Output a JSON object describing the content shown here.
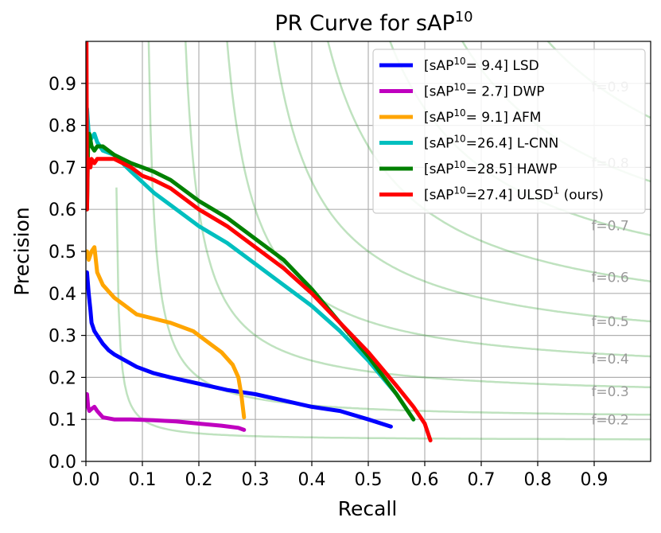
{
  "chart_data": {
    "type": "line",
    "title": "PR Curve for sAP",
    "title_sup": "10",
    "xlabel": "Recall",
    "ylabel": "Precision",
    "xlim": [
      0,
      1.0
    ],
    "ylim": [
      0,
      1.0
    ],
    "xticks": [
      "0.0",
      "0.1",
      "0.2",
      "0.3",
      "0.4",
      "0.5",
      "0.6",
      "0.7",
      "0.8",
      "0.9"
    ],
    "yticks": [
      "0.0",
      "0.1",
      "0.2",
      "0.3",
      "0.4",
      "0.5",
      "0.6",
      "0.7",
      "0.8",
      "0.9"
    ],
    "grid": true,
    "legend_position": "top-right",
    "iso_f_lines": [
      0.1,
      0.2,
      0.3,
      0.4,
      0.5,
      0.6,
      0.7,
      0.8,
      0.9
    ],
    "iso_f_labels": [
      {
        "f": 0.2,
        "text": "f=0.2"
      },
      {
        "f": 0.3,
        "text": "f=0.3"
      },
      {
        "f": 0.4,
        "text": "f=0.4"
      },
      {
        "f": 0.5,
        "text": "f=0.5"
      },
      {
        "f": 0.6,
        "text": "f=0.6"
      },
      {
        "f": 0.7,
        "text": "f=0.7"
      },
      {
        "f": 0.8,
        "text": "f=0.8"
      },
      {
        "f": 0.9,
        "text": "f=0.9"
      }
    ],
    "series": [
      {
        "name": "LSD",
        "legend": {
          "prefix": "[sAP",
          "sup": "10",
          "mid": "= 9.4] LSD",
          "sup2": "",
          "suffix": ""
        },
        "color": "#0000ff",
        "x": [
          0.002,
          0.005,
          0.008,
          0.01,
          0.015,
          0.02,
          0.03,
          0.04,
          0.05,
          0.07,
          0.09,
          0.12,
          0.15,
          0.2,
          0.25,
          0.3,
          0.35,
          0.4,
          0.45,
          0.5,
          0.54
        ],
        "y": [
          0.45,
          0.4,
          0.36,
          0.33,
          0.31,
          0.3,
          0.28,
          0.265,
          0.255,
          0.24,
          0.225,
          0.21,
          0.2,
          0.185,
          0.17,
          0.16,
          0.145,
          0.13,
          0.12,
          0.1,
          0.083
        ]
      },
      {
        "name": "DWP",
        "legend": {
          "prefix": "[sAP",
          "sup": "10",
          "mid": "= 2.7] DWP",
          "sup2": "",
          "suffix": ""
        },
        "color": "#bf00bf",
        "x": [
          0.002,
          0.004,
          0.006,
          0.01,
          0.015,
          0.02,
          0.03,
          0.05,
          0.08,
          0.12,
          0.16,
          0.2,
          0.24,
          0.27,
          0.28
        ],
        "y": [
          0.16,
          0.13,
          0.12,
          0.125,
          0.13,
          0.12,
          0.105,
          0.1,
          0.1,
          0.098,
          0.095,
          0.09,
          0.085,
          0.08,
          0.075
        ]
      },
      {
        "name": "AFM",
        "legend": {
          "prefix": "[sAP",
          "sup": "10",
          "mid": "= 9.1] AFM",
          "sup2": "",
          "suffix": ""
        },
        "color": "#ffa500",
        "x": [
          0.002,
          0.005,
          0.01,
          0.015,
          0.02,
          0.03,
          0.05,
          0.07,
          0.09,
          0.12,
          0.15,
          0.19,
          0.22,
          0.24,
          0.26,
          0.27,
          0.275,
          0.28
        ],
        "y": [
          0.5,
          0.48,
          0.5,
          0.51,
          0.45,
          0.42,
          0.39,
          0.37,
          0.35,
          0.34,
          0.33,
          0.31,
          0.28,
          0.26,
          0.23,
          0.2,
          0.16,
          0.105
        ]
      },
      {
        "name": "L-CNN",
        "legend": {
          "prefix": "[sAP",
          "sup": "10",
          "mid": "=26.4] L-CNN",
          "sup2": "",
          "suffix": ""
        },
        "color": "#00bfbf",
        "x": [
          0.002,
          0.004,
          0.006,
          0.01,
          0.015,
          0.02,
          0.03,
          0.05,
          0.08,
          0.12,
          0.15,
          0.2,
          0.25,
          0.3,
          0.35,
          0.4,
          0.45,
          0.5,
          0.55,
          0.58
        ],
        "y": [
          0.84,
          0.8,
          0.76,
          0.77,
          0.78,
          0.76,
          0.74,
          0.73,
          0.69,
          0.64,
          0.61,
          0.56,
          0.52,
          0.47,
          0.42,
          0.37,
          0.31,
          0.24,
          0.16,
          0.1
        ]
      },
      {
        "name": "HAWP",
        "legend": {
          "prefix": "[sAP",
          "sup": "10",
          "mid": "=28.5] HAWP",
          "sup2": "",
          "suffix": ""
        },
        "color": "#008000",
        "x": [
          0.002,
          0.004,
          0.006,
          0.01,
          0.015,
          0.02,
          0.03,
          0.05,
          0.08,
          0.1,
          0.12,
          0.15,
          0.2,
          0.25,
          0.3,
          0.35,
          0.4,
          0.45,
          0.5,
          0.55,
          0.58
        ],
        "y": [
          0.6,
          0.76,
          0.78,
          0.75,
          0.74,
          0.75,
          0.75,
          0.73,
          0.71,
          0.7,
          0.69,
          0.67,
          0.62,
          0.58,
          0.53,
          0.48,
          0.41,
          0.33,
          0.25,
          0.16,
          0.1
        ]
      },
      {
        "name": "ULSD",
        "legend": {
          "prefix": "[sAP",
          "sup": "10",
          "mid": "=27.4] ULSD",
          "sup2": "1",
          "suffix": " (ours)"
        },
        "color": "#ff0000",
        "x": [
          0.001,
          0.002,
          0.003,
          0.005,
          0.008,
          0.01,
          0.015,
          0.02,
          0.03,
          0.05,
          0.08,
          0.1,
          0.12,
          0.15,
          0.2,
          0.25,
          0.3,
          0.35,
          0.4,
          0.45,
          0.5,
          0.55,
          0.58,
          0.6,
          0.61
        ],
        "y": [
          1.0,
          0.6,
          0.7,
          0.72,
          0.7,
          0.72,
          0.71,
          0.72,
          0.72,
          0.72,
          0.7,
          0.68,
          0.67,
          0.65,
          0.6,
          0.56,
          0.51,
          0.46,
          0.4,
          0.33,
          0.26,
          0.18,
          0.13,
          0.09,
          0.05
        ]
      }
    ]
  }
}
